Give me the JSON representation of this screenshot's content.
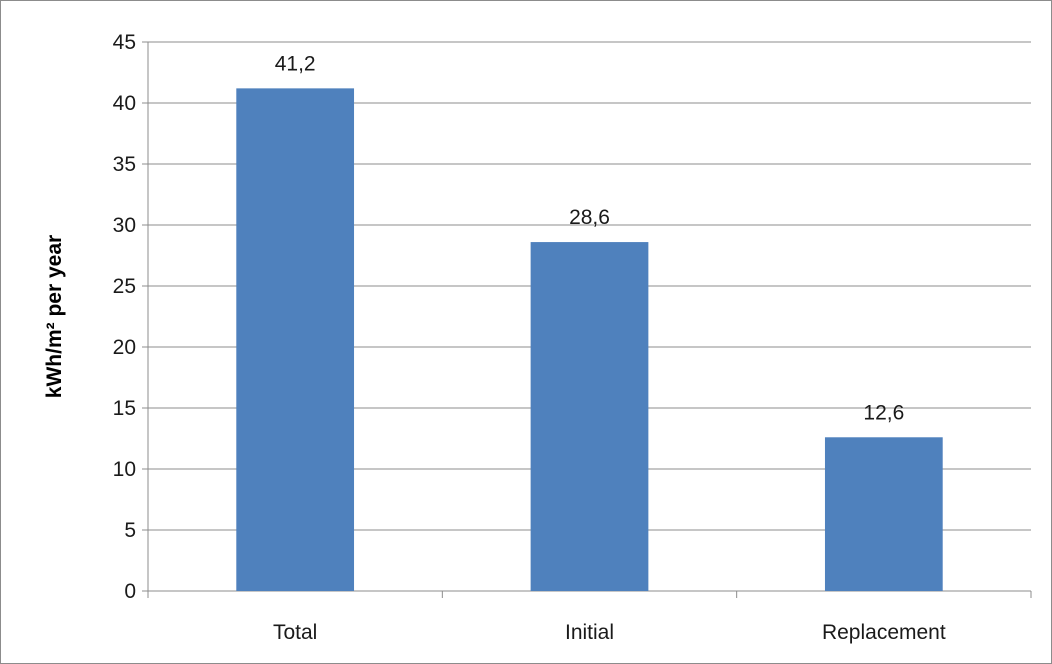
{
  "chart_data": {
    "type": "bar",
    "title": "",
    "xlabel": "",
    "ylabel": "kWh/m² per year",
    "categories": [
      "Total",
      "Initial",
      "Replacement"
    ],
    "values": [
      41.2,
      28.6,
      12.6
    ],
    "data_labels": [
      "41,2",
      "28,6",
      "12,6"
    ],
    "ylim": [
      0,
      45
    ],
    "yticks": [
      0,
      5,
      10,
      15,
      20,
      25,
      30,
      35,
      40,
      45
    ],
    "grid": true,
    "legend": "none",
    "bar_color": "#4f81bd",
    "grid_color": "#8c8c8c"
  }
}
